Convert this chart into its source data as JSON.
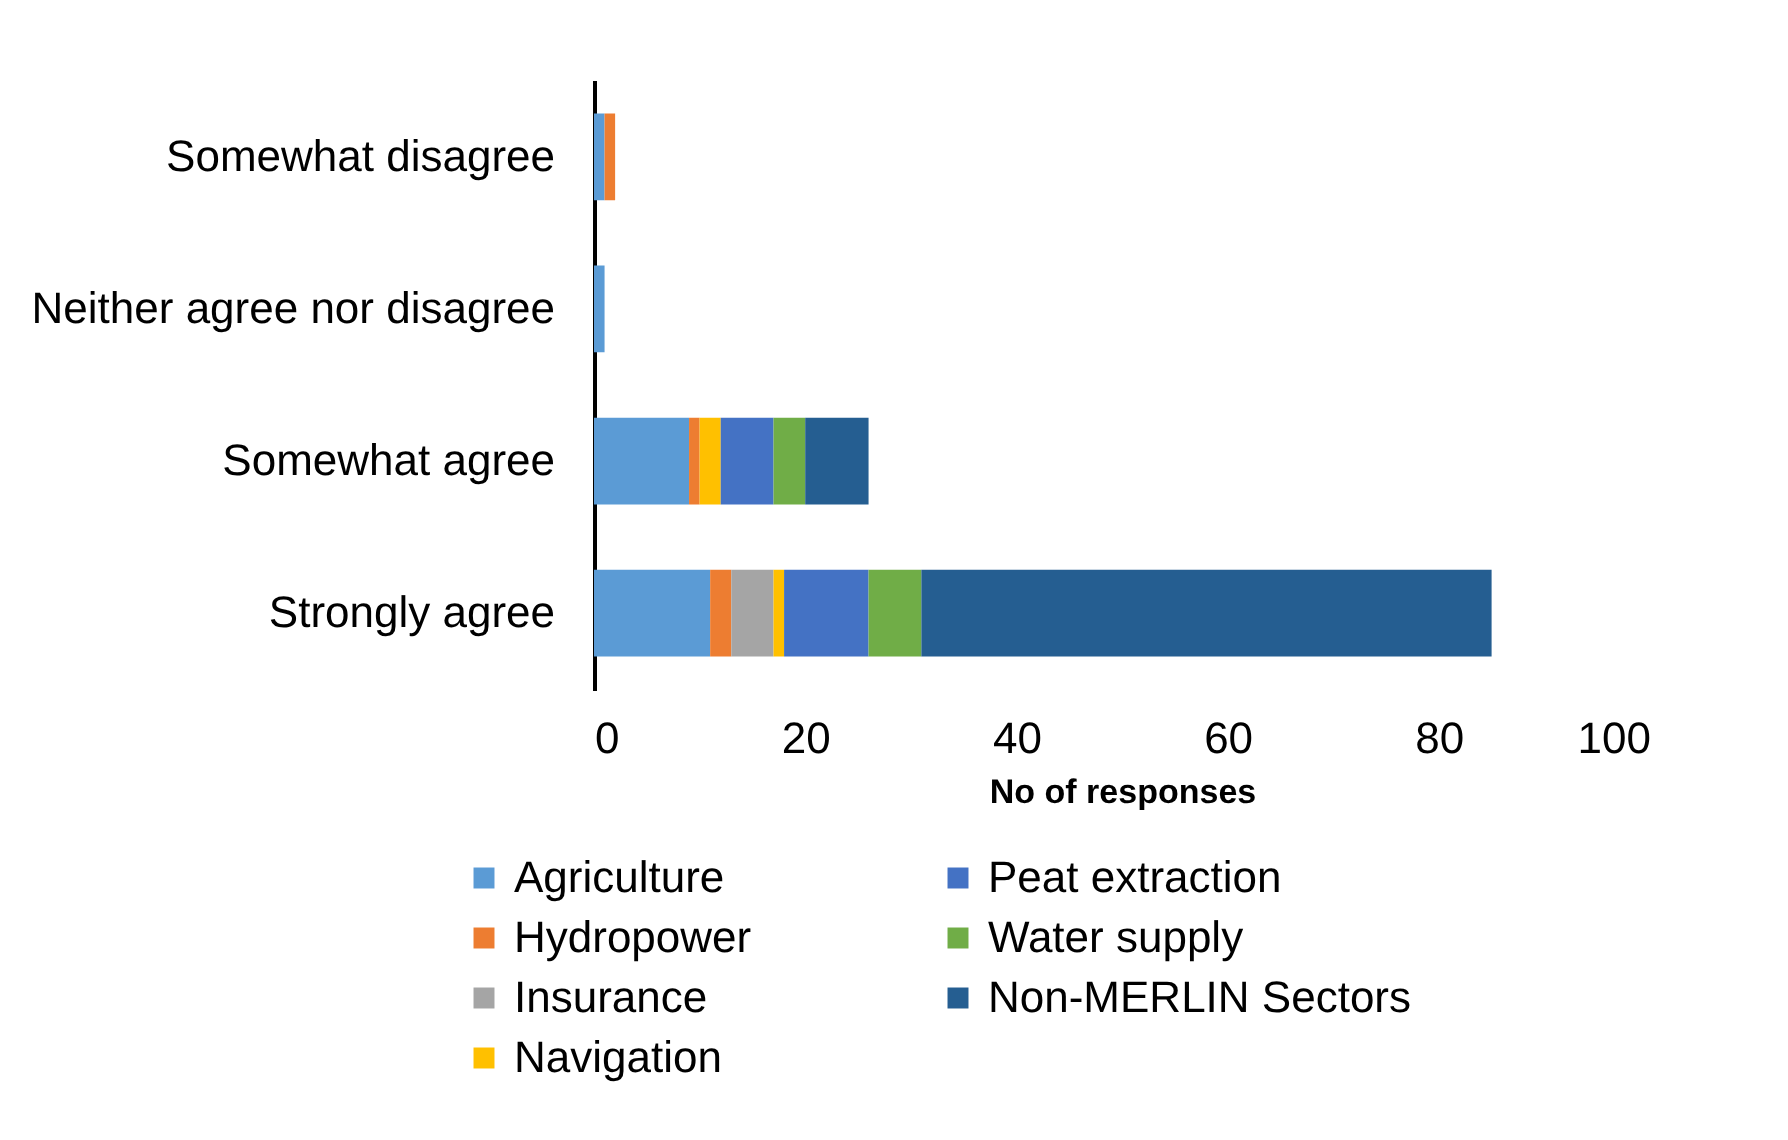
{
  "chart_data": {
    "type": "bar",
    "orientation": "horizontal",
    "stacked": true,
    "xlabel": "No of responses",
    "categories": [
      "Somewhat disagree",
      "Neither agree nor disagree",
      "Somewhat agree",
      "Strongly agree"
    ],
    "series": [
      {
        "name": "Agriculture",
        "color": "#5b9bd5",
        "values": [
          1,
          1,
          9,
          11
        ]
      },
      {
        "name": "Hydropower",
        "color": "#ed7d31",
        "values": [
          1,
          0,
          1,
          2
        ]
      },
      {
        "name": "Insurance",
        "color": "#a5a5a5",
        "values": [
          0,
          0,
          0,
          4
        ]
      },
      {
        "name": "Navigation",
        "color": "#ffc000",
        "values": [
          0,
          0,
          2,
          1
        ]
      },
      {
        "name": "Peat extraction",
        "color": "#4472c4",
        "values": [
          0,
          0,
          5,
          8
        ]
      },
      {
        "name": "Water supply",
        "color": "#70ad47",
        "values": [
          0,
          0,
          3,
          5
        ]
      },
      {
        "name": "Non-MERLIN Sectors",
        "color": "#255e91",
        "values": [
          0,
          0,
          6,
          54
        ]
      }
    ],
    "xlim": [
      0,
      100
    ],
    "xticks": [
      0,
      20,
      40,
      60,
      80,
      100
    ],
    "grid": false,
    "legend": "bottom"
  }
}
